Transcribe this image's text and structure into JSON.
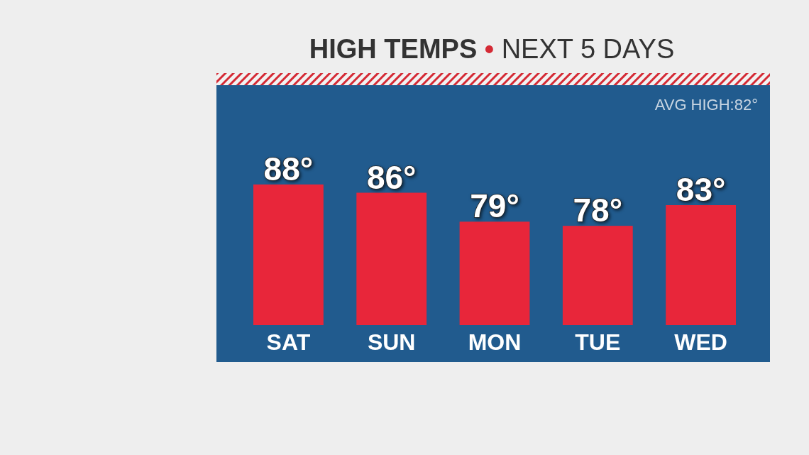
{
  "chart_data": {
    "type": "bar",
    "title": "HIGH TEMPS • NEXT 5 DAYS",
    "categories": [
      "SAT",
      "SUN",
      "MON",
      "TUE",
      "WED"
    ],
    "values": [
      88,
      86,
      79,
      78,
      83
    ],
    "value_labels": [
      "88°",
      "86°",
      "79°",
      "78°",
      "83°"
    ],
    "color": "#e8263a",
    "ylim": [
      54,
      112
    ],
    "tick_labels": "x",
    "annotations": [
      "AVG HIGH:82°"
    ]
  }
}
